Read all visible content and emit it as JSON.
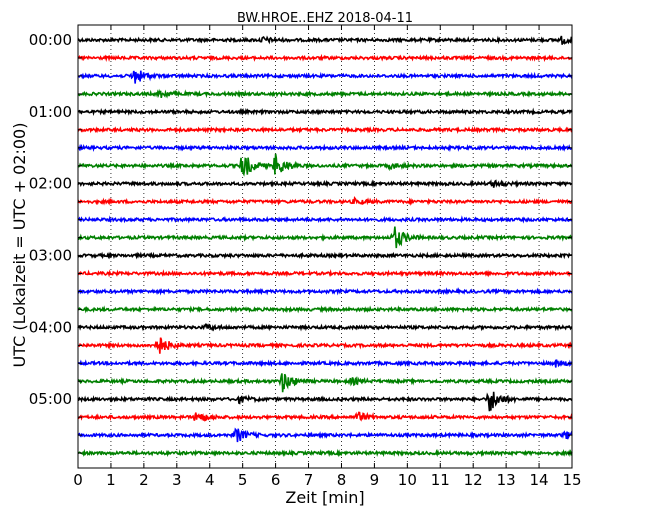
{
  "chart_data": {
    "type": "line",
    "title": "BW.HROE..EHZ 2018-04-11",
    "xlabel": "Zeit  [min]",
    "ylabel": "UTC (Lokalzeit = UTC + 02:00)",
    "xlim": [
      0,
      15
    ],
    "x_ticks": [
      0,
      1,
      2,
      3,
      4,
      5,
      6,
      7,
      8,
      9,
      10,
      11,
      12,
      13,
      14,
      15
    ],
    "y_tick_labels": [
      "00:00",
      "01:00",
      "02:00",
      "03:00",
      "04:00",
      "05:00"
    ],
    "y_tick_rows": [
      0,
      4,
      8,
      12,
      16,
      20
    ],
    "grid": "vertical-dotted",
    "colors": [
      "#000000",
      "#ff0000",
      "#0000ff",
      "#008000"
    ],
    "traces": [
      {
        "start": "00:00",
        "events": [
          {
            "t": 5.6,
            "a": 0.08
          },
          {
            "t": 14.7,
            "a": 0.12
          }
        ]
      },
      {
        "start": "00:15",
        "events": []
      },
      {
        "start": "00:30",
        "events": [
          {
            "t": 1.7,
            "a": 0.3
          }
        ]
      },
      {
        "start": "00:45",
        "events": [
          {
            "t": 2.5,
            "a": 0.12
          }
        ]
      },
      {
        "start": "01:00",
        "events": []
      },
      {
        "start": "01:15",
        "events": []
      },
      {
        "start": "01:30",
        "events": []
      },
      {
        "start": "01:45",
        "events": [
          {
            "t": 5.0,
            "a": 0.45
          },
          {
            "t": 6.0,
            "a": 0.4
          },
          {
            "t": 9.5,
            "a": 0.08
          }
        ]
      },
      {
        "start": "02:00",
        "events": [
          {
            "t": 12.6,
            "a": 0.1
          }
        ]
      },
      {
        "start": "02:15",
        "events": [
          {
            "t": 8.4,
            "a": 0.08
          }
        ]
      },
      {
        "start": "02:30",
        "events": []
      },
      {
        "start": "02:45",
        "events": [
          {
            "t": 9.6,
            "a": 0.4
          }
        ]
      },
      {
        "start": "03:00",
        "events": []
      },
      {
        "start": "03:15",
        "events": []
      },
      {
        "start": "03:30",
        "events": []
      },
      {
        "start": "03:45",
        "events": []
      },
      {
        "start": "04:00",
        "events": [
          {
            "t": 3.9,
            "a": 0.08
          }
        ]
      },
      {
        "start": "04:15",
        "events": [
          {
            "t": 2.4,
            "a": 0.4
          }
        ]
      },
      {
        "start": "04:30",
        "events": [
          {
            "t": 14.5,
            "a": 0.1
          }
        ]
      },
      {
        "start": "04:45",
        "events": [
          {
            "t": 6.2,
            "a": 0.35
          },
          {
            "t": 8.3,
            "a": 0.1
          }
        ]
      },
      {
        "start": "05:00",
        "events": [
          {
            "t": 12.5,
            "a": 0.45
          },
          {
            "t": 4.9,
            "a": 0.1
          }
        ]
      },
      {
        "start": "05:15",
        "events": [
          {
            "t": 3.6,
            "a": 0.2
          },
          {
            "t": 8.5,
            "a": 0.15
          }
        ]
      },
      {
        "start": "05:30",
        "events": [
          {
            "t": 4.8,
            "a": 0.25
          },
          {
            "t": 14.8,
            "a": 0.12
          }
        ]
      },
      {
        "start": "05:45",
        "events": []
      }
    ]
  }
}
